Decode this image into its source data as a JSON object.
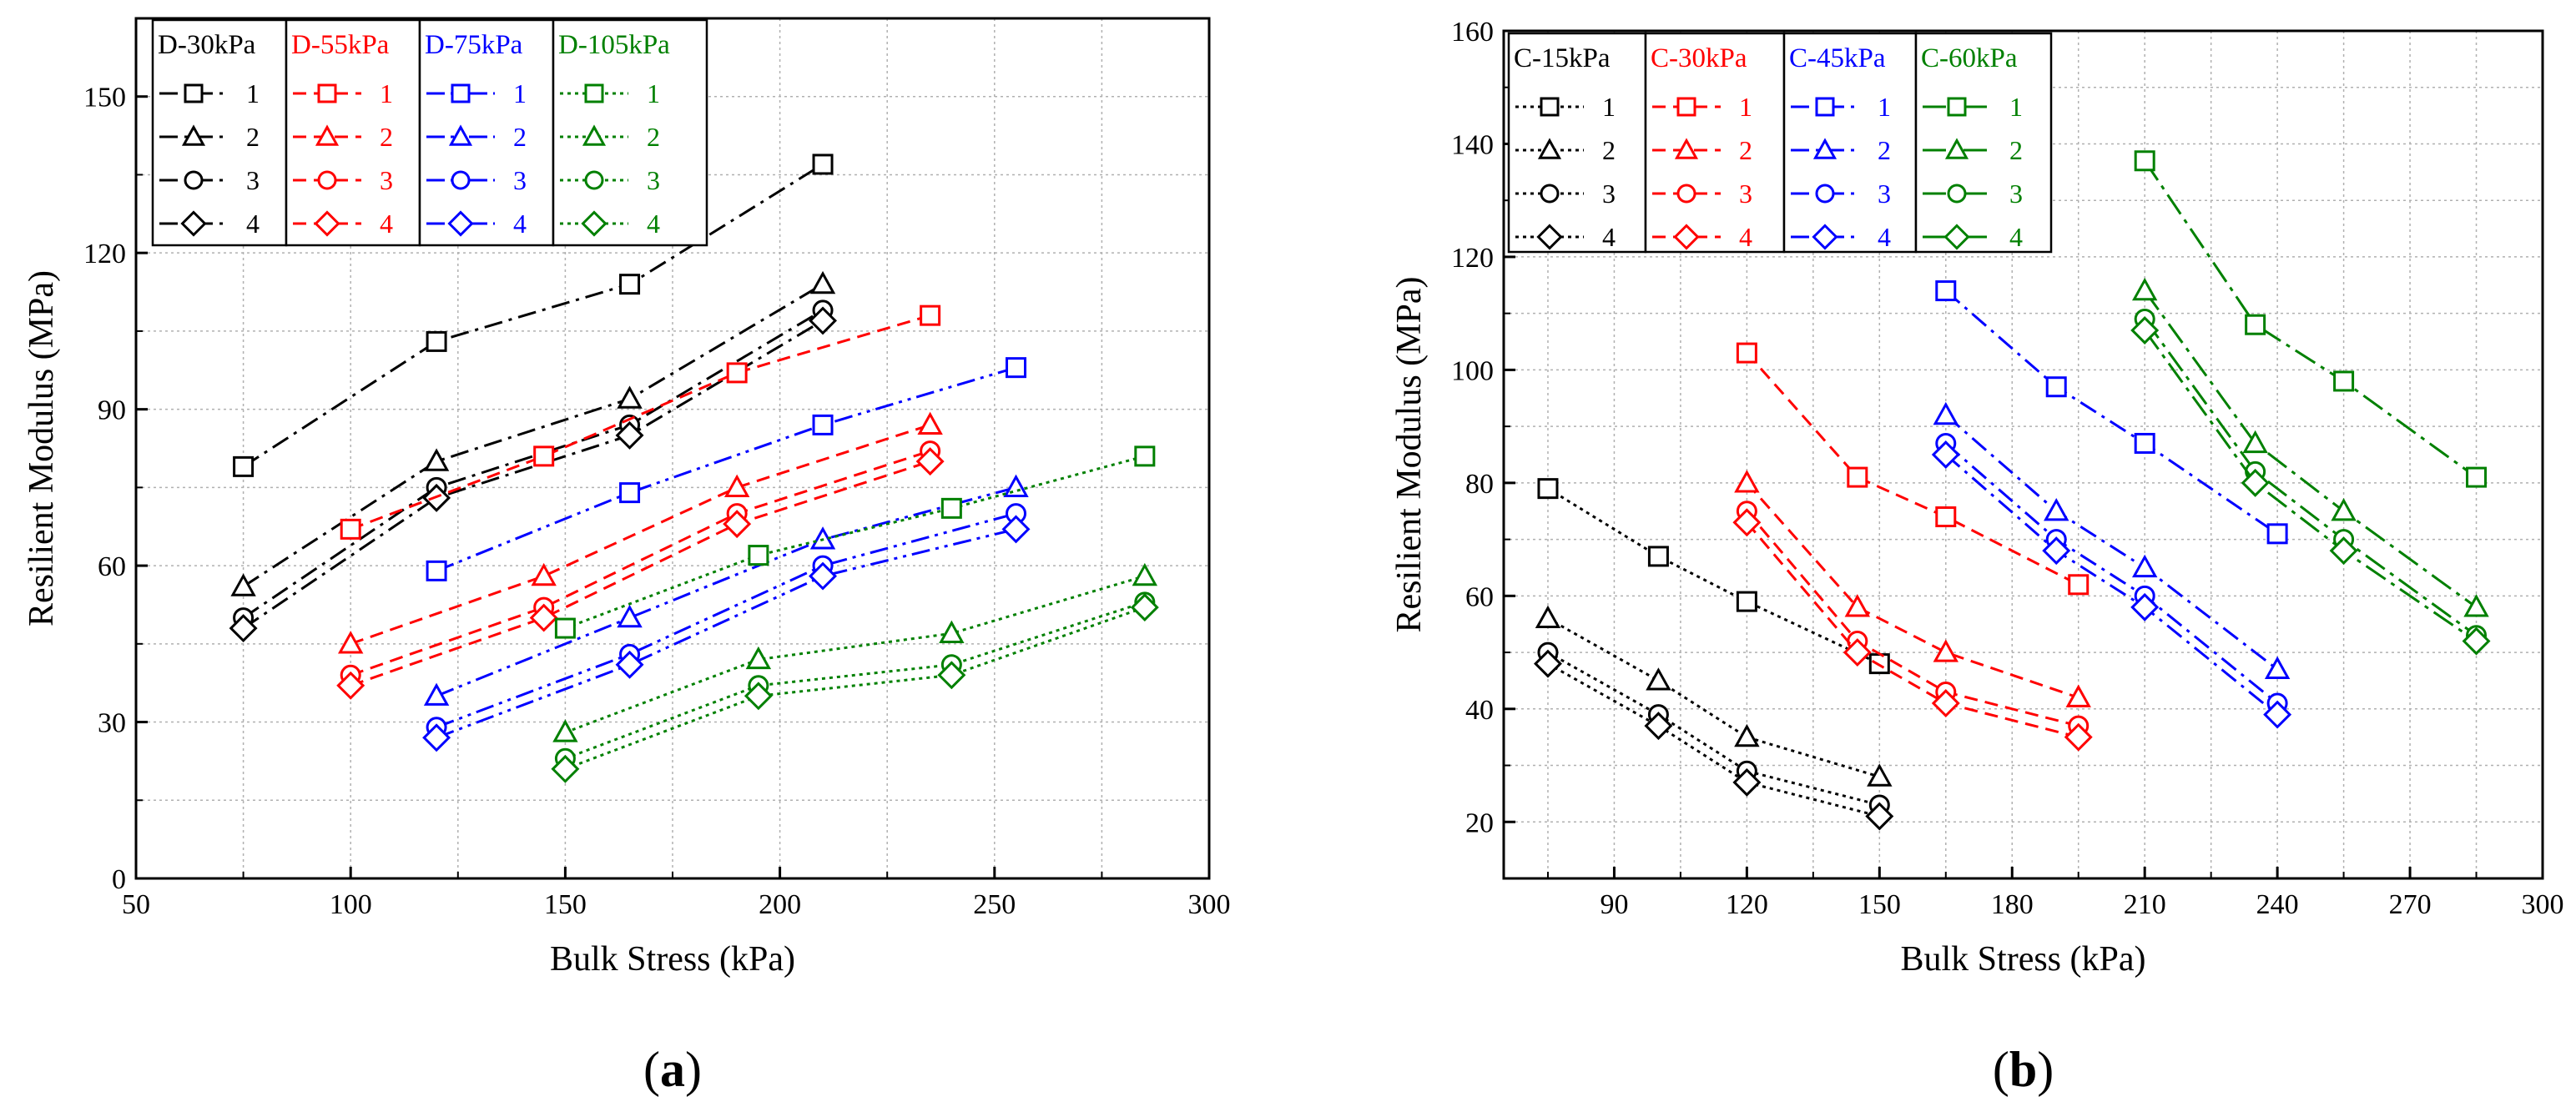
{
  "panels": [
    {
      "id": "a",
      "caption": "(a)",
      "chart_data": {
        "type": "line",
        "xlabel": "Bulk Stress (kPa)",
        "ylabel": "Resilient Modulus (MPa)",
        "xlim": [
          50,
          300
        ],
        "ylim": [
          0,
          165
        ],
        "xticks": [
          50,
          100,
          150,
          200,
          250,
          300
        ],
        "yticks": [
          0,
          30,
          60,
          90,
          120,
          150
        ],
        "grid": true,
        "legend_groups": [
          {
            "title": "D-30kPa",
            "color": "#000000",
            "dash": "dashdot",
            "entries": [
              "1",
              "2",
              "3",
              "4"
            ]
          },
          {
            "title": "D-55kPa",
            "color": "#ff0000",
            "dash": "dash",
            "entries": [
              "1",
              "2",
              "3",
              "4"
            ]
          },
          {
            "title": "D-75kPa",
            "color": "#0000ff",
            "dash": "dashdotdot",
            "entries": [
              "1",
              "2",
              "3",
              "4"
            ]
          },
          {
            "title": "D-105kPa",
            "color": "#008000",
            "dash": "dot",
            "entries": [
              "1",
              "2",
              "3",
              "4"
            ]
          }
        ],
        "series": [
          {
            "name": "D-30kPa 1",
            "group": 0,
            "marker": "square",
            "x": [
              75,
              120,
              165,
              210
            ],
            "y": [
              79,
              103,
              114,
              137
            ]
          },
          {
            "name": "D-30kPa 2",
            "group": 0,
            "marker": "triangle",
            "x": [
              75,
              120,
              165,
              210
            ],
            "y": [
              56,
              80,
              92,
              114
            ]
          },
          {
            "name": "D-30kPa 3",
            "group": 0,
            "marker": "circle",
            "x": [
              75,
              120,
              165,
              210
            ],
            "y": [
              50,
              75,
              87,
              109
            ]
          },
          {
            "name": "D-30kPa 4",
            "group": 0,
            "marker": "diamond",
            "x": [
              75,
              120,
              165,
              210
            ],
            "y": [
              48,
              73,
              85,
              107
            ]
          },
          {
            "name": "D-55kPa 1",
            "group": 1,
            "marker": "square",
            "x": [
              100,
              145,
              190,
              235
            ],
            "y": [
              67,
              81,
              97,
              108
            ]
          },
          {
            "name": "D-55kPa 2",
            "group": 1,
            "marker": "triangle",
            "x": [
              100,
              145,
              190,
              235
            ],
            "y": [
              45,
              58,
              75,
              87
            ]
          },
          {
            "name": "D-55kPa 3",
            "group": 1,
            "marker": "circle",
            "x": [
              100,
              145,
              190,
              235
            ],
            "y": [
              39,
              52,
              70,
              82
            ]
          },
          {
            "name": "D-55kPa 4",
            "group": 1,
            "marker": "diamond",
            "x": [
              100,
              145,
              190,
              235
            ],
            "y": [
              37,
              50,
              68,
              80
            ]
          },
          {
            "name": "D-75kPa 1",
            "group": 2,
            "marker": "square",
            "x": [
              120,
              165,
              210,
              255
            ],
            "y": [
              59,
              74,
              87,
              98
            ]
          },
          {
            "name": "D-75kPa 2",
            "group": 2,
            "marker": "triangle",
            "x": [
              120,
              165,
              210,
              255
            ],
            "y": [
              35,
              50,
              65,
              75
            ]
          },
          {
            "name": "D-75kPa 3",
            "group": 2,
            "marker": "circle",
            "x": [
              120,
              165,
              210,
              255
            ],
            "y": [
              29,
              43,
              60,
              70
            ]
          },
          {
            "name": "D-75kPa 4",
            "group": 2,
            "marker": "diamond",
            "x": [
              120,
              165,
              210,
              255
            ],
            "y": [
              27,
              41,
              58,
              67
            ]
          },
          {
            "name": "D-105kPa 1",
            "group": 3,
            "marker": "square",
            "x": [
              150,
              195,
              240,
              285
            ],
            "y": [
              48,
              62,
              71,
              81
            ]
          },
          {
            "name": "D-105kPa 2",
            "group": 3,
            "marker": "triangle",
            "x": [
              150,
              195,
              240,
              285
            ],
            "y": [
              28,
              42,
              47,
              58
            ]
          },
          {
            "name": "D-105kPa 3",
            "group": 3,
            "marker": "circle",
            "x": [
              150,
              195,
              240,
              285
            ],
            "y": [
              23,
              37,
              41,
              53
            ]
          },
          {
            "name": "D-105kPa 4",
            "group": 3,
            "marker": "diamond",
            "x": [
              150,
              195,
              240,
              285
            ],
            "y": [
              21,
              35,
              39,
              52
            ]
          }
        ]
      }
    },
    {
      "id": "b",
      "caption": "(b)",
      "chart_data": {
        "type": "line",
        "xlabel": "Bulk Stress (kPa)",
        "ylabel": "Resilient Modulus (MPa)",
        "xlim": [
          65,
          300
        ],
        "ylim": [
          10,
          160
        ],
        "xticks": [
          90,
          120,
          150,
          180,
          210,
          240,
          270,
          300
        ],
        "yticks": [
          20,
          40,
          60,
          80,
          100,
          120,
          140,
          160
        ],
        "grid": true,
        "legend_groups": [
          {
            "title": "C-15kPa",
            "color": "#000000",
            "dash": "dot",
            "entries": [
              "1",
              "2",
              "3",
              "4"
            ]
          },
          {
            "title": "C-30kPa",
            "color": "#ff0000",
            "dash": "dash",
            "entries": [
              "1",
              "2",
              "3",
              "4"
            ]
          },
          {
            "title": "C-45kPa",
            "color": "#0000ff",
            "dash": "dashdot",
            "entries": [
              "1",
              "2",
              "3",
              "4"
            ]
          },
          {
            "title": "C-60kPa",
            "color": "#008000",
            "dash": "longdashdot",
            "entries": [
              "1",
              "2",
              "3",
              "4"
            ]
          }
        ],
        "series": [
          {
            "name": "C-15kPa 1",
            "group": 0,
            "marker": "square",
            "x": [
              75,
              100,
              120,
              150
            ],
            "y": [
              79,
              67,
              59,
              48
            ]
          },
          {
            "name": "C-15kPa 2",
            "group": 0,
            "marker": "triangle",
            "x": [
              75,
              100,
              120,
              150
            ],
            "y": [
              56,
              45,
              35,
              28
            ]
          },
          {
            "name": "C-15kPa 3",
            "group": 0,
            "marker": "circle",
            "x": [
              75,
              100,
              120,
              150
            ],
            "y": [
              50,
              39,
              29,
              23
            ]
          },
          {
            "name": "C-15kPa 4",
            "group": 0,
            "marker": "diamond",
            "x": [
              75,
              100,
              120,
              150
            ],
            "y": [
              48,
              37,
              27,
              21
            ]
          },
          {
            "name": "C-30kPa 1",
            "group": 1,
            "marker": "square",
            "x": [
              120,
              145,
              165,
              195
            ],
            "y": [
              103,
              81,
              74,
              62
            ]
          },
          {
            "name": "C-30kPa 2",
            "group": 1,
            "marker": "triangle",
            "x": [
              120,
              145,
              165,
              195
            ],
            "y": [
              80,
              58,
              50,
              42
            ]
          },
          {
            "name": "C-30kPa 3",
            "group": 1,
            "marker": "circle",
            "x": [
              120,
              145,
              165,
              195
            ],
            "y": [
              75,
              52,
              43,
              37
            ]
          },
          {
            "name": "C-30kPa 4",
            "group": 1,
            "marker": "diamond",
            "x": [
              120,
              145,
              165,
              195
            ],
            "y": [
              73,
              50,
              41,
              35
            ]
          },
          {
            "name": "C-45kPa 1",
            "group": 2,
            "marker": "square",
            "x": [
              165,
              190,
              210,
              240
            ],
            "y": [
              114,
              97,
              87,
              71
            ]
          },
          {
            "name": "C-45kPa 2",
            "group": 2,
            "marker": "triangle",
            "x": [
              165,
              190,
              210,
              240
            ],
            "y": [
              92,
              75,
              65,
              47
            ]
          },
          {
            "name": "C-45kPa 3",
            "group": 2,
            "marker": "circle",
            "x": [
              165,
              190,
              210,
              240
            ],
            "y": [
              87,
              70,
              60,
              41
            ]
          },
          {
            "name": "C-45kPa 4",
            "group": 2,
            "marker": "diamond",
            "x": [
              165,
              190,
              210,
              240
            ],
            "y": [
              85,
              68,
              58,
              39
            ]
          },
          {
            "name": "C-60kPa 1",
            "group": 3,
            "marker": "square",
            "x": [
              210,
              235,
              255,
              285
            ],
            "y": [
              137,
              108,
              98,
              81
            ]
          },
          {
            "name": "C-60kPa 2",
            "group": 3,
            "marker": "triangle",
            "x": [
              210,
              235,
              255,
              285
            ],
            "y": [
              114,
              87,
              75,
              58
            ]
          },
          {
            "name": "C-60kPa 3",
            "group": 3,
            "marker": "circle",
            "x": [
              210,
              235,
              255,
              285
            ],
            "y": [
              109,
              82,
              70,
              53
            ]
          },
          {
            "name": "C-60kPa 4",
            "group": 3,
            "marker": "diamond",
            "x": [
              210,
              235,
              255,
              285
            ],
            "y": [
              107,
              80,
              68,
              52
            ]
          }
        ]
      }
    }
  ]
}
